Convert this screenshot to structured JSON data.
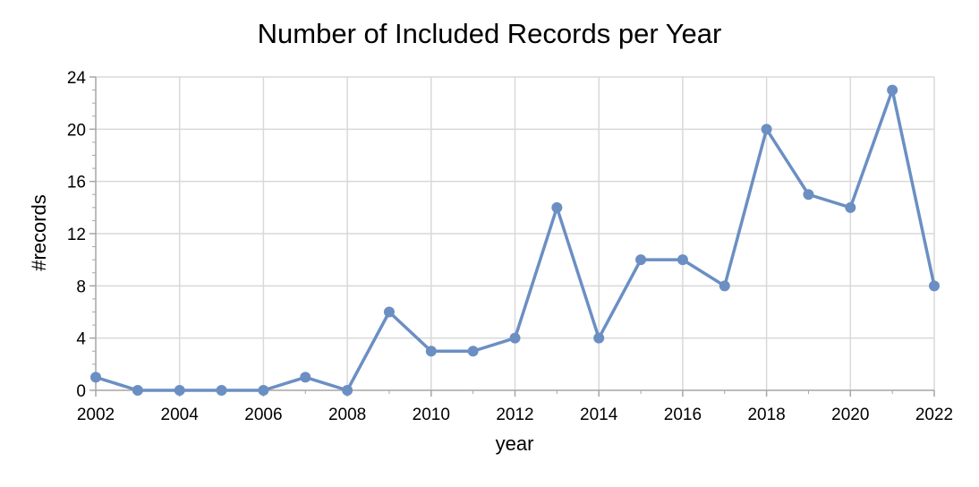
{
  "chart_data": {
    "type": "line",
    "title": "Number of Included Records per Year",
    "xlabel": "year",
    "ylabel": "#records",
    "x": [
      2002,
      2003,
      2004,
      2005,
      2006,
      2007,
      2008,
      2009,
      2010,
      2011,
      2012,
      2013,
      2014,
      2015,
      2016,
      2017,
      2018,
      2019,
      2020,
      2021,
      2022
    ],
    "series": [
      {
        "values": [
          1,
          0,
          0,
          0,
          0,
          1,
          0,
          6,
          3,
          3,
          4,
          14,
          4,
          10,
          10,
          8,
          20,
          15,
          14,
          23,
          8
        ],
        "color": "#6B8FC3"
      }
    ],
    "xlim": [
      2002,
      2022
    ],
    "ylim": [
      0,
      24
    ],
    "xticks": [
      "2002",
      "2004",
      "2006",
      "2008",
      "2010",
      "2012",
      "2014",
      "2016",
      "2018",
      "2020",
      "2022"
    ],
    "yticks": [
      "0",
      "4",
      "8",
      "12",
      "16",
      "20",
      "24"
    ],
    "grid": true,
    "legend": "none",
    "marker": "circle"
  }
}
